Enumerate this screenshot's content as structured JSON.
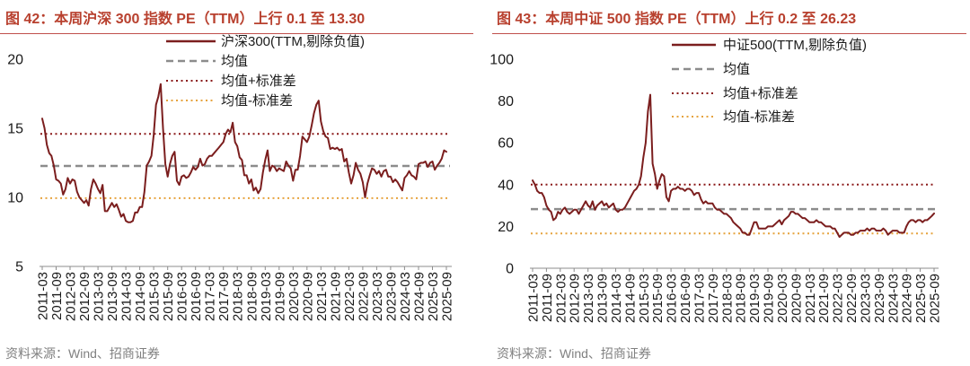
{
  "chart_data": [
    {
      "type": "line",
      "title": "图 42：本周沪深 300 指数 PE（TTM）上行 0.1 至 13.30",
      "ylim": [
        5,
        20
      ],
      "yticks": [
        5,
        10,
        15,
        20
      ],
      "xticks": [
        "2011-03",
        "2011-09",
        "2012-03",
        "2012-09",
        "2013-03",
        "2013-09",
        "2014-03",
        "2014-09",
        "2015-03",
        "2015-09",
        "2016-03",
        "2016-09",
        "2017-03",
        "2017-09",
        "2018-03",
        "2018-09",
        "2019-03",
        "2019-09",
        "2020-03",
        "2020-09",
        "2021-03",
        "2021-09",
        "2022-03",
        "2022-09",
        "2023-03",
        "2023-09",
        "2024-03",
        "2024-09",
        "2025-03",
        "2025-09"
      ],
      "x": [
        "2011-03",
        "2011-04",
        "2011-05",
        "2011-06",
        "2011-07",
        "2011-08",
        "2011-09",
        "2011-10",
        "2011-11",
        "2011-12",
        "2012-01",
        "2012-02",
        "2012-03",
        "2012-04",
        "2012-05",
        "2012-06",
        "2012-07",
        "2012-08",
        "2012-09",
        "2012-10",
        "2012-11",
        "2012-12",
        "2013-01",
        "2013-02",
        "2013-03",
        "2013-04",
        "2013-05",
        "2013-06",
        "2013-07",
        "2013-08",
        "2013-09",
        "2013-10",
        "2013-11",
        "2013-12",
        "2014-01",
        "2014-02",
        "2014-03",
        "2014-04",
        "2014-05",
        "2014-06",
        "2014-07",
        "2014-08",
        "2014-09",
        "2014-10",
        "2014-11",
        "2014-12",
        "2015-01",
        "2015-02",
        "2015-03",
        "2015-04",
        "2015-05",
        "2015-06",
        "2015-07",
        "2015-08",
        "2015-09",
        "2015-10",
        "2015-11",
        "2015-12",
        "2016-01",
        "2016-02",
        "2016-03",
        "2016-04",
        "2016-05",
        "2016-06",
        "2016-07",
        "2016-08",
        "2016-09",
        "2016-10",
        "2016-11",
        "2016-12",
        "2017-01",
        "2017-02",
        "2017-03",
        "2017-04",
        "2017-05",
        "2017-06",
        "2017-07",
        "2017-08",
        "2017-09",
        "2017-10",
        "2017-11",
        "2017-12",
        "2018-01",
        "2018-02",
        "2018-03",
        "2018-04",
        "2018-05",
        "2018-06",
        "2018-07",
        "2018-08",
        "2018-09",
        "2018-10",
        "2018-11",
        "2018-12",
        "2019-01",
        "2019-02",
        "2019-03",
        "2019-04",
        "2019-05",
        "2019-06",
        "2019-07",
        "2019-08",
        "2019-09",
        "2019-10",
        "2019-11",
        "2019-12",
        "2020-01",
        "2020-02",
        "2020-03",
        "2020-04",
        "2020-05",
        "2020-06",
        "2020-07",
        "2020-08",
        "2020-09",
        "2020-10",
        "2020-11",
        "2020-12",
        "2021-01",
        "2021-02",
        "2021-03",
        "2021-04",
        "2021-05",
        "2021-06",
        "2021-07",
        "2021-08",
        "2021-09",
        "2021-10",
        "2021-11",
        "2021-12",
        "2022-01",
        "2022-02",
        "2022-03",
        "2022-04",
        "2022-05",
        "2022-06",
        "2022-07",
        "2022-08",
        "2022-09",
        "2022-10",
        "2022-11",
        "2022-12",
        "2023-01",
        "2023-02",
        "2023-03",
        "2023-04",
        "2023-05",
        "2023-06",
        "2023-07",
        "2023-08",
        "2023-09",
        "2023-10",
        "2023-11",
        "2023-12",
        "2024-01",
        "2024-02",
        "2024-03",
        "2024-04",
        "2024-05",
        "2024-06",
        "2024-07",
        "2024-08",
        "2024-09",
        "2024-10",
        "2024-11",
        "2024-12",
        "2025-01",
        "2025-02",
        "2025-03",
        "2025-04",
        "2025-05",
        "2025-06",
        "2025-07",
        "2025-08",
        "2025-09"
      ],
      "series": [
        {
          "name": "沪深300(TTM,剔除负值)",
          "color": "#7B1E1E",
          "values": [
            15.7,
            15.0,
            13.8,
            13.2,
            13.0,
            12.3,
            11.3,
            11.2,
            11.0,
            10.2,
            10.6,
            11.4,
            11.0,
            11.3,
            11.2,
            10.4,
            10.0,
            9.8,
            9.6,
            9.8,
            9.4,
            10.6,
            11.3,
            11.0,
            10.6,
            10.3,
            10.9,
            9.0,
            9.0,
            9.3,
            9.6,
            9.3,
            9.5,
            9.1,
            8.6,
            8.8,
            8.3,
            8.2,
            8.2,
            8.3,
            8.9,
            8.9,
            9.3,
            9.3,
            10.4,
            12.3,
            12.6,
            13.0,
            14.5,
            16.7,
            17.3,
            18.2,
            15.0,
            12.4,
            11.5,
            12.4,
            13.0,
            13.3,
            11.2,
            10.9,
            11.5,
            11.6,
            11.4,
            11.5,
            11.8,
            12.2,
            12.0,
            12.2,
            12.8,
            12.3,
            12.4,
            12.8,
            13.0,
            13.0,
            13.2,
            13.4,
            13.6,
            13.8,
            14.0,
            14.6,
            14.9,
            14.7,
            15.4,
            14.0,
            13.7,
            12.9,
            12.7,
            11.6,
            11.6,
            11.0,
            11.3,
            10.5,
            10.7,
            10.3,
            10.6,
            11.8,
            12.7,
            13.4,
            11.9,
            12.3,
            12.2,
            11.9,
            12.1,
            12.0,
            11.9,
            12.6,
            12.3,
            12.1,
            11.2,
            12.0,
            12.0,
            13.0,
            14.4,
            14.2,
            14.0,
            14.4,
            15.2,
            16.1,
            16.7,
            17.0,
            15.5,
            14.8,
            14.4,
            14.3,
            13.5,
            13.6,
            13.5,
            13.6,
            13.4,
            13.5,
            12.6,
            12.8,
            11.8,
            11.0,
            11.6,
            12.5,
            12.0,
            11.7,
            11.1,
            10.0,
            11.0,
            11.6,
            12.1,
            12.0,
            11.7,
            11.9,
            11.5,
            11.9,
            12.0,
            11.5,
            11.5,
            11.1,
            11.3,
            11.1,
            10.8,
            10.5,
            11.4,
            11.6,
            11.9,
            11.6,
            11.5,
            11.3,
            12.4,
            12.5,
            12.5,
            12.6,
            12.2,
            12.5,
            12.6,
            12.0,
            12.3,
            12.5,
            12.8,
            13.4,
            13.3
          ]
        }
      ],
      "reference_lines": [
        {
          "name": "均值",
          "value": 12.27,
          "style": "dashed",
          "color": "#8C8C8C"
        },
        {
          "name": "均值+标准差",
          "value": 14.6,
          "style": "dotted",
          "color": "#8B1A1A"
        },
        {
          "name": "均值-标准差",
          "value": 9.94,
          "style": "dotted",
          "color": "#E6A33E"
        }
      ],
      "legend": "top",
      "grid": false,
      "source": "资料来源：Wind、招商证券"
    },
    {
      "type": "line",
      "title": "图 43：本周中证 500 指数 PE（TTM）上行 0.2 至 26.23",
      "ylim": [
        0,
        100
      ],
      "yticks": [
        0,
        20,
        40,
        60,
        80,
        100
      ],
      "xticks": [
        "2011-03",
        "2011-09",
        "2012-03",
        "2012-09",
        "2013-03",
        "2013-09",
        "2014-03",
        "2014-09",
        "2015-03",
        "2015-09",
        "2016-03",
        "2016-09",
        "2017-03",
        "2017-09",
        "2018-03",
        "2018-09",
        "2019-03",
        "2019-09",
        "2020-03",
        "2020-09",
        "2021-03",
        "2021-09",
        "2022-03",
        "2022-09",
        "2023-03",
        "2023-09",
        "2024-03",
        "2024-09",
        "2025-03",
        "2025-09"
      ],
      "x": [
        "2011-03",
        "2011-04",
        "2011-05",
        "2011-06",
        "2011-07",
        "2011-08",
        "2011-09",
        "2011-10",
        "2011-11",
        "2011-12",
        "2012-01",
        "2012-02",
        "2012-03",
        "2012-04",
        "2012-05",
        "2012-06",
        "2012-07",
        "2012-08",
        "2012-09",
        "2012-10",
        "2012-11",
        "2012-12",
        "2013-01",
        "2013-02",
        "2013-03",
        "2013-04",
        "2013-05",
        "2013-06",
        "2013-07",
        "2013-08",
        "2013-09",
        "2013-10",
        "2013-11",
        "2013-12",
        "2014-01",
        "2014-02",
        "2014-03",
        "2014-04",
        "2014-05",
        "2014-06",
        "2014-07",
        "2014-08",
        "2014-09",
        "2014-10",
        "2014-11",
        "2014-12",
        "2015-01",
        "2015-02",
        "2015-03",
        "2015-04",
        "2015-05",
        "2015-06",
        "2015-07",
        "2015-08",
        "2015-09",
        "2015-10",
        "2015-11",
        "2015-12",
        "2016-01",
        "2016-02",
        "2016-03",
        "2016-04",
        "2016-05",
        "2016-06",
        "2016-07",
        "2016-08",
        "2016-09",
        "2016-10",
        "2016-11",
        "2016-12",
        "2017-01",
        "2017-02",
        "2017-03",
        "2017-04",
        "2017-05",
        "2017-06",
        "2017-07",
        "2017-08",
        "2017-09",
        "2017-10",
        "2017-11",
        "2017-12",
        "2018-01",
        "2018-02",
        "2018-03",
        "2018-04",
        "2018-05",
        "2018-06",
        "2018-07",
        "2018-08",
        "2018-09",
        "2018-10",
        "2018-11",
        "2018-12",
        "2019-01",
        "2019-02",
        "2019-03",
        "2019-04",
        "2019-05",
        "2019-06",
        "2019-07",
        "2019-08",
        "2019-09",
        "2019-10",
        "2019-11",
        "2019-12",
        "2020-01",
        "2020-02",
        "2020-03",
        "2020-04",
        "2020-05",
        "2020-06",
        "2020-07",
        "2020-08",
        "2020-09",
        "2020-10",
        "2020-11",
        "2020-12",
        "2021-01",
        "2021-02",
        "2021-03",
        "2021-04",
        "2021-05",
        "2021-06",
        "2021-07",
        "2021-08",
        "2021-09",
        "2021-10",
        "2021-11",
        "2021-12",
        "2022-01",
        "2022-02",
        "2022-03",
        "2022-04",
        "2022-05",
        "2022-06",
        "2022-07",
        "2022-08",
        "2022-09",
        "2022-10",
        "2022-11",
        "2022-12",
        "2023-01",
        "2023-02",
        "2023-03",
        "2023-04",
        "2023-05",
        "2023-06",
        "2023-07",
        "2023-08",
        "2023-09",
        "2023-10",
        "2023-11",
        "2023-12",
        "2024-01",
        "2024-02",
        "2024-03",
        "2024-04",
        "2024-05",
        "2024-06",
        "2024-07",
        "2024-08",
        "2024-09",
        "2024-10",
        "2024-11",
        "2024-12",
        "2025-01",
        "2025-02",
        "2025-03",
        "2025-04",
        "2025-05",
        "2025-06",
        "2025-07",
        "2025-08",
        "2025-09"
      ],
      "series": [
        {
          "name": "中证500(TTM,剔除负值)",
          "color": "#7B1E1E",
          "values": [
            42,
            40,
            37,
            36,
            36,
            34,
            30,
            28,
            27,
            23,
            24,
            27,
            26,
            28,
            29,
            27,
            26,
            27,
            28,
            28,
            26,
            28,
            30,
            32,
            30,
            29,
            32,
            28,
            30,
            31,
            32,
            30,
            31,
            29,
            30,
            31,
            28,
            27,
            28,
            28,
            29,
            31,
            33,
            35,
            37,
            38,
            40,
            44,
            53,
            60,
            75,
            83,
            50,
            45,
            38,
            42,
            45,
            44,
            34,
            32,
            37,
            38,
            38,
            39,
            38,
            38,
            37,
            38,
            38,
            37,
            35,
            36,
            36,
            33,
            31,
            32,
            31,
            31,
            31,
            29,
            28,
            28,
            27,
            26,
            26,
            25,
            24,
            22,
            21,
            20,
            19,
            17,
            17,
            16,
            16,
            19,
            22,
            22,
            19,
            19,
            19,
            19,
            20,
            20,
            20,
            21,
            22,
            23,
            21,
            23,
            24,
            25,
            27,
            27,
            26,
            26,
            25,
            24,
            24,
            23,
            22,
            22,
            22,
            23,
            22,
            22,
            21,
            20,
            20,
            20,
            19,
            19,
            17,
            15,
            16,
            17,
            17,
            17,
            16,
            16,
            17,
            17,
            18,
            18,
            18,
            19,
            18,
            19,
            19,
            18,
            18,
            18,
            19,
            18,
            16,
            17,
            18,
            18,
            18,
            17,
            17,
            17,
            20,
            22,
            23,
            23,
            22,
            23,
            23,
            22,
            23,
            23,
            24,
            25,
            26.23
          ]
        }
      ],
      "reference_lines": [
        {
          "name": "均值",
          "value": 28.3,
          "style": "dashed",
          "color": "#8C8C8C"
        },
        {
          "name": "均值+标准差",
          "value": 40.0,
          "style": "dotted",
          "color": "#8B1A1A"
        },
        {
          "name": "均值-标准差",
          "value": 16.6,
          "style": "dotted",
          "color": "#E6A33E"
        }
      ],
      "legend": "top",
      "grid": false,
      "source": "资料来源：Wind、招商证券"
    }
  ]
}
